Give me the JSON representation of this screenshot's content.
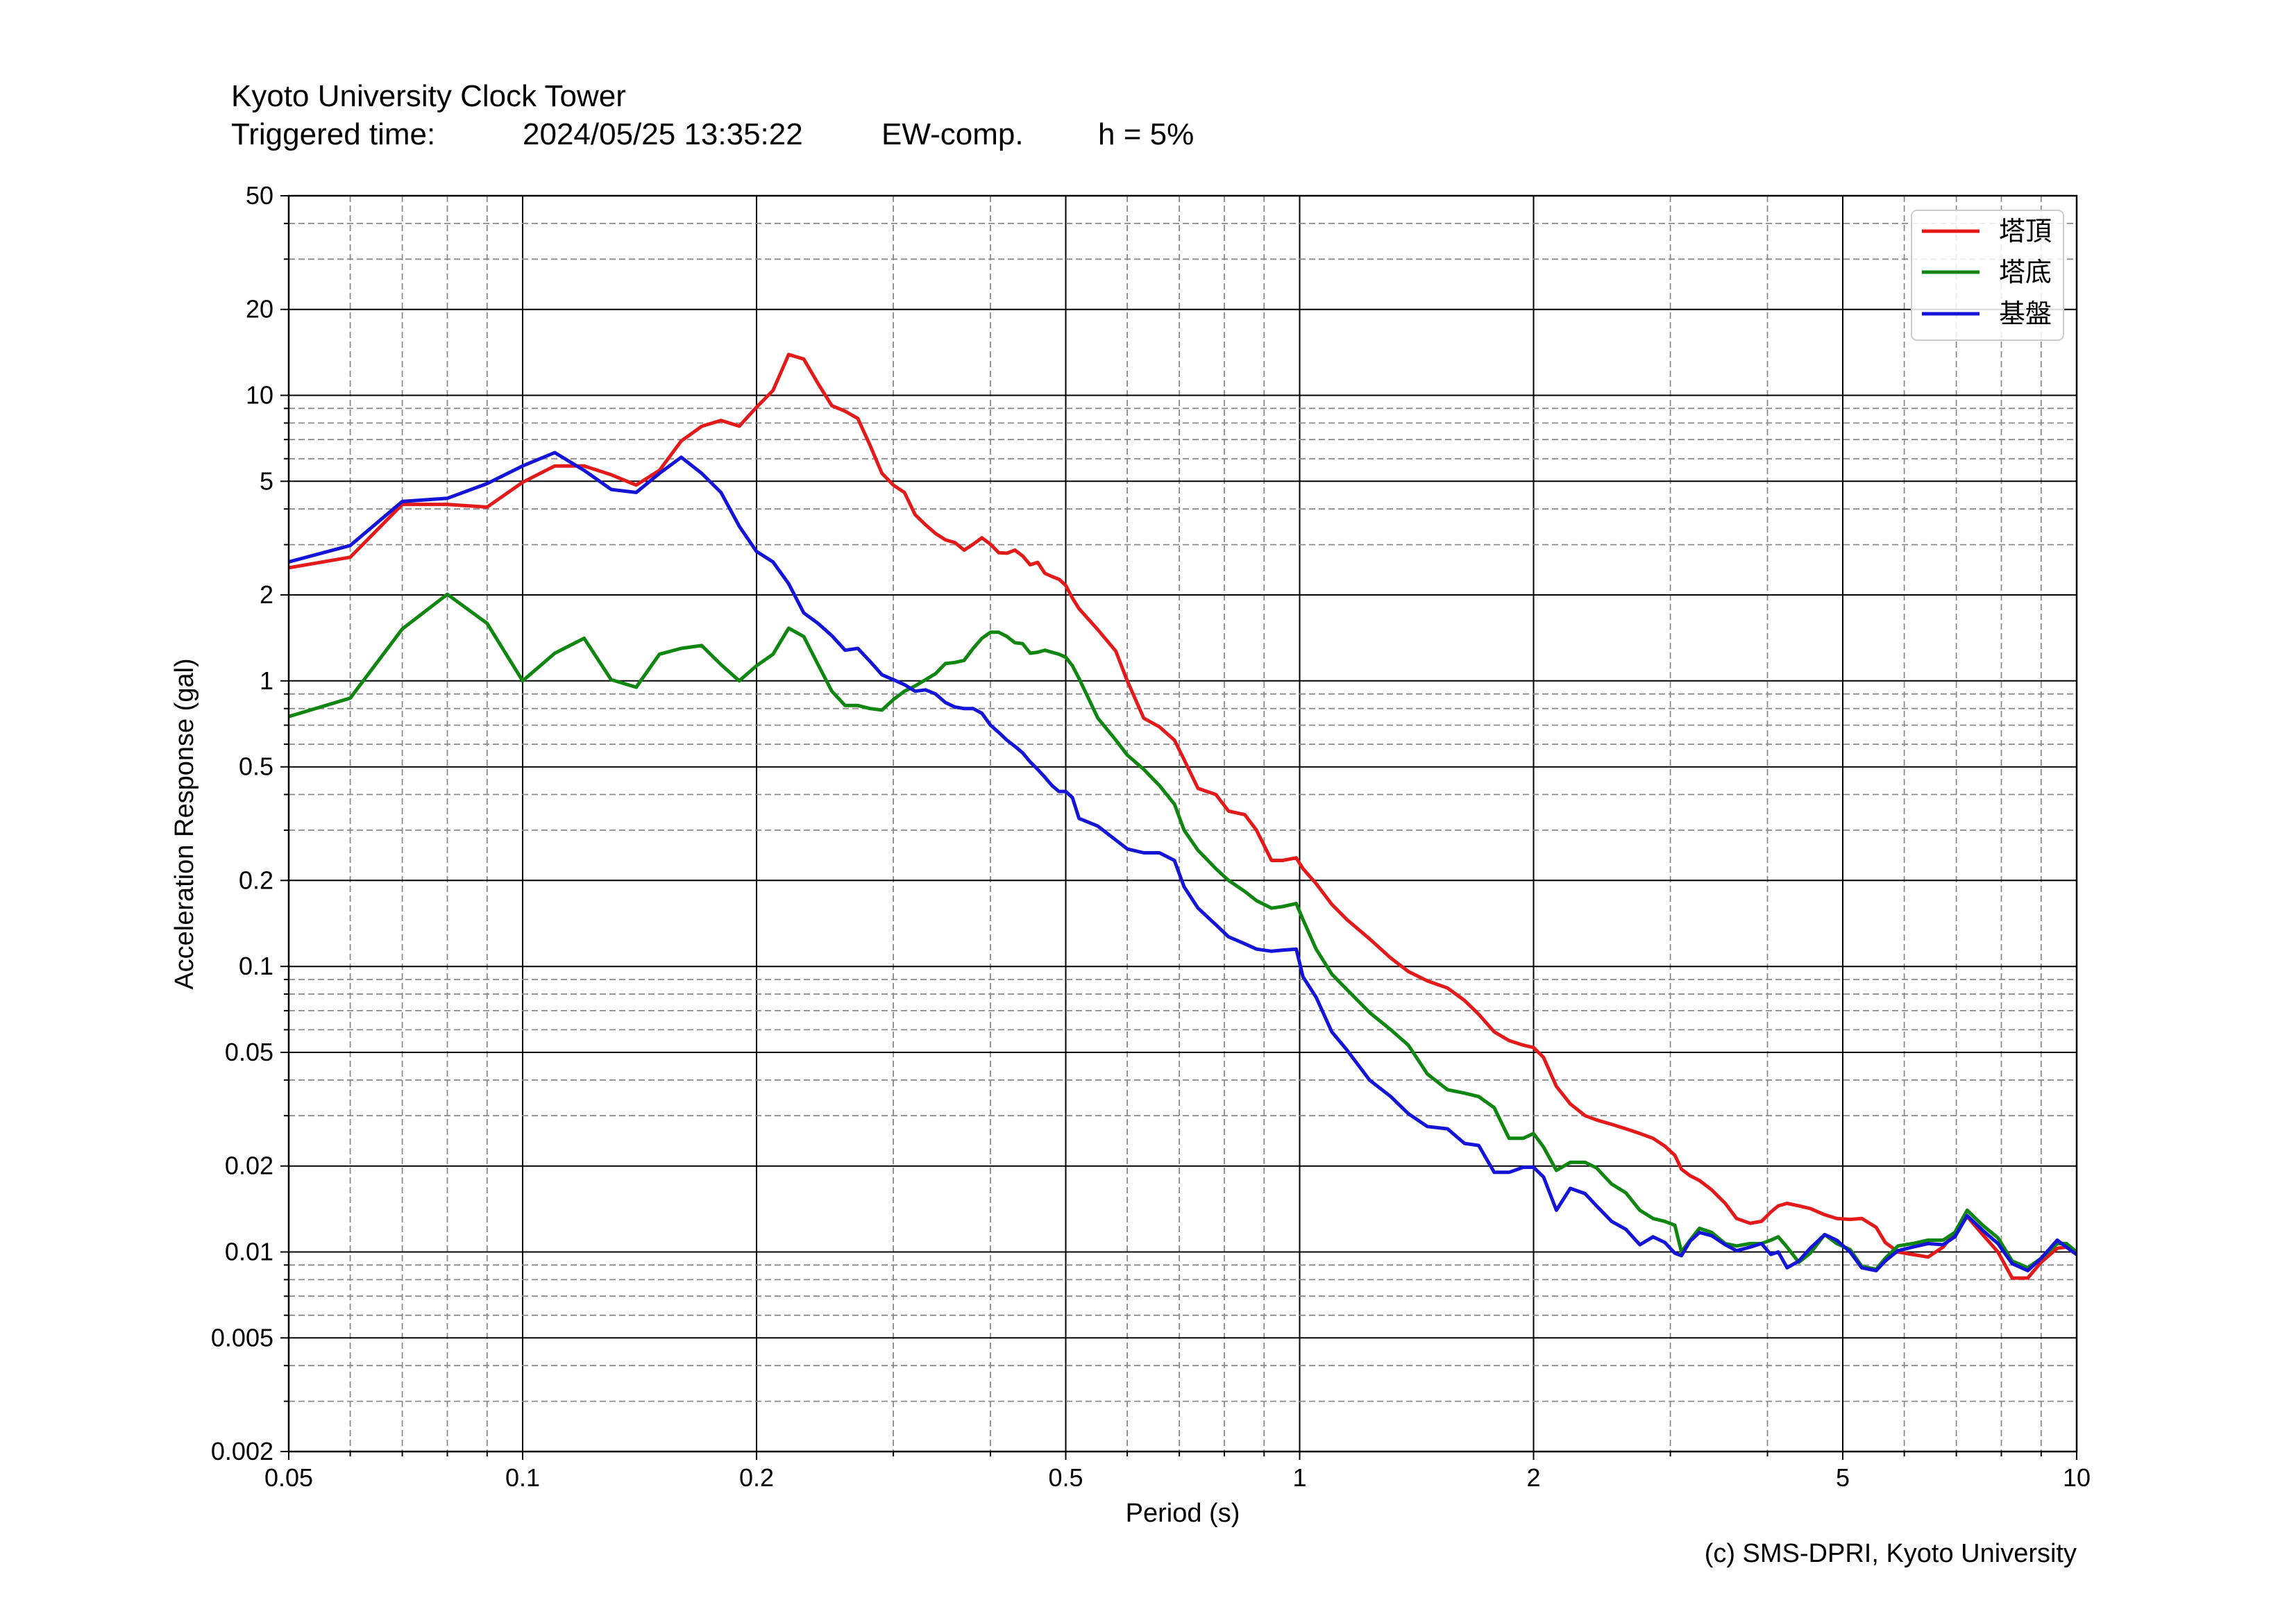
{
  "chart_data": {
    "type": "line",
    "title": "Kyoto University Clock Tower",
    "subtitle": {
      "label": "Triggered time:",
      "time": "2024/05/25 13:35:22",
      "component": "EW-comp.",
      "damping": "h = 5%"
    },
    "xlabel": "Period (s)",
    "ylabel": "Acceleration Response (gal)",
    "xscale": "log",
    "yscale": "log",
    "xlim": [
      0.05,
      10
    ],
    "ylim": [
      0.002,
      50
    ],
    "xticks": [
      "0.05",
      "0.1",
      "0.2",
      "0.5",
      "1",
      "2",
      "5",
      "10"
    ],
    "yticks": [
      "50",
      "20",
      "10",
      "5",
      "2",
      "1",
      "0.5",
      "0.2",
      "0.1",
      "0.05",
      "0.02",
      "0.01",
      "0.005",
      "0.002"
    ],
    "grid": true,
    "legend": "top-right",
    "x": [
      0.05,
      0.06,
      0.07,
      0.08,
      0.09,
      0.1,
      0.11,
      0.12,
      0.13,
      0.14,
      0.15,
      0.16,
      0.17,
      0.18,
      0.19,
      0.2,
      0.21,
      0.22,
      0.23,
      0.24,
      0.25,
      0.26,
      0.27,
      0.28,
      0.29,
      0.3,
      0.31,
      0.32,
      0.33,
      0.34,
      0.35,
      0.36,
      0.37,
      0.38,
      0.39,
      0.4,
      0.41,
      0.42,
      0.43,
      0.44,
      0.45,
      0.46,
      0.47,
      0.48,
      0.49,
      0.5,
      0.51,
      0.52,
      0.55,
      0.58,
      0.6,
      0.63,
      0.66,
      0.69,
      0.71,
      0.74,
      0.78,
      0.81,
      0.85,
      0.88,
      0.92,
      0.95,
      0.99,
      1.01,
      1.05,
      1.1,
      1.15,
      1.23,
      1.31,
      1.38,
      1.46,
      1.55,
      1.63,
      1.7,
      1.78,
      1.86,
      1.94,
      2.0,
      2.06,
      2.14,
      2.23,
      2.33,
      2.41,
      2.52,
      2.63,
      2.74,
      2.85,
      2.95,
      3.04,
      3.1,
      3.18,
      3.27,
      3.39,
      3.53,
      3.65,
      3.8,
      3.93,
      4.04,
      4.13,
      4.24,
      4.39,
      4.54,
      4.74,
      4.91,
      5.11,
      5.29,
      5.52,
      5.67,
      5.89,
      6.15,
      6.44,
      6.73,
      6.97,
      7.23,
      7.57,
      7.92,
      8.26,
      8.65,
      9.0,
      9.44,
      9.7,
      10.0
    ],
    "series": [
      {
        "name": "塔頂",
        "color": "#e41a1a",
        "values": [
          2.49,
          2.71,
          4.15,
          4.15,
          4.06,
          4.96,
          5.66,
          5.66,
          5.27,
          4.85,
          5.46,
          6.92,
          7.79,
          8.17,
          7.8,
          9.09,
          10.4,
          13.9,
          13.4,
          11.0,
          9.2,
          8.8,
          8.3,
          6.68,
          5.33,
          4.85,
          4.57,
          3.82,
          3.52,
          3.28,
          3.12,
          3.05,
          2.87,
          3.01,
          3.17,
          3.01,
          2.81,
          2.8,
          2.87,
          2.74,
          2.55,
          2.6,
          2.38,
          2.32,
          2.27,
          2.16,
          1.95,
          1.79,
          1.51,
          1.27,
          1.0,
          0.74,
          0.69,
          0.62,
          0.53,
          0.42,
          0.4,
          0.35,
          0.34,
          0.3,
          0.235,
          0.235,
          0.24,
          0.22,
          0.195,
          0.165,
          0.146,
          0.125,
          0.107,
          0.096,
          0.089,
          0.084,
          0.076,
          0.068,
          0.059,
          0.055,
          0.053,
          0.052,
          0.048,
          0.038,
          0.033,
          0.03,
          0.029,
          0.028,
          0.027,
          0.026,
          0.025,
          0.0235,
          0.0218,
          0.0195,
          0.0185,
          0.0178,
          0.0165,
          0.0148,
          0.0131,
          0.0126,
          0.0128,
          0.0138,
          0.0145,
          0.0148,
          0.0145,
          0.0142,
          0.0135,
          0.0131,
          0.013,
          0.0131,
          0.0122,
          0.0108,
          0.01,
          0.0098,
          0.0096,
          0.0104,
          0.0117,
          0.0133,
          0.0115,
          0.01,
          0.0081,
          0.0081,
          0.0092,
          0.0103,
          0.0104,
          0.0098
        ]
      },
      {
        "name": "塔底",
        "color": "#0f860f",
        "values": [
          0.75,
          0.87,
          1.52,
          2.01,
          1.59,
          1.0,
          1.25,
          1.41,
          1.01,
          0.95,
          1.24,
          1.3,
          1.33,
          1.14,
          1.0,
          1.13,
          1.24,
          1.53,
          1.43,
          1.14,
          0.92,
          0.82,
          0.82,
          0.8,
          0.79,
          0.86,
          0.92,
          0.96,
          1.01,
          1.06,
          1.15,
          1.16,
          1.18,
          1.3,
          1.41,
          1.48,
          1.48,
          1.43,
          1.36,
          1.35,
          1.25,
          1.26,
          1.28,
          1.26,
          1.24,
          1.21,
          1.13,
          1.02,
          0.74,
          0.62,
          0.55,
          0.49,
          0.43,
          0.37,
          0.3,
          0.255,
          0.22,
          0.2,
          0.183,
          0.17,
          0.16,
          0.162,
          0.166,
          0.146,
          0.115,
          0.094,
          0.083,
          0.069,
          0.06,
          0.053,
          0.042,
          0.037,
          0.036,
          0.035,
          0.032,
          0.025,
          0.025,
          0.026,
          0.0233,
          0.0193,
          0.0206,
          0.0206,
          0.0197,
          0.0173,
          0.0161,
          0.014,
          0.0131,
          0.0128,
          0.0124,
          0.01,
          0.011,
          0.0121,
          0.0117,
          0.0107,
          0.0105,
          0.0107,
          0.0107,
          0.011,
          0.0113,
          0.0104,
          0.0092,
          0.0099,
          0.0115,
          0.0107,
          0.0102,
          0.0089,
          0.0087,
          0.0095,
          0.0105,
          0.0107,
          0.011,
          0.011,
          0.0117,
          0.014,
          0.0124,
          0.0112,
          0.0093,
          0.0088,
          0.0095,
          0.0107,
          0.0107,
          0.01
        ]
      },
      {
        "name": "基盤",
        "color": "#1414d8",
        "values": [
          2.61,
          2.98,
          4.25,
          4.36,
          4.91,
          5.66,
          6.3,
          5.46,
          4.68,
          4.57,
          5.33,
          6.07,
          5.33,
          4.57,
          3.48,
          2.84,
          2.61,
          2.19,
          1.73,
          1.59,
          1.44,
          1.28,
          1.3,
          1.17,
          1.05,
          1.01,
          0.97,
          0.92,
          0.93,
          0.9,
          0.84,
          0.81,
          0.8,
          0.8,
          0.77,
          0.7,
          0.66,
          0.62,
          0.59,
          0.56,
          0.52,
          0.49,
          0.46,
          0.43,
          0.41,
          0.41,
          0.39,
          0.33,
          0.31,
          0.277,
          0.258,
          0.25,
          0.25,
          0.235,
          0.19,
          0.16,
          0.14,
          0.127,
          0.12,
          0.115,
          0.113,
          0.114,
          0.115,
          0.092,
          0.078,
          0.059,
          0.051,
          0.04,
          0.035,
          0.0305,
          0.0275,
          0.027,
          0.024,
          0.0236,
          0.019,
          0.019,
          0.0198,
          0.0198,
          0.0183,
          0.014,
          0.0167,
          0.016,
          0.0145,
          0.0128,
          0.012,
          0.0106,
          0.0113,
          0.0108,
          0.0099,
          0.0097,
          0.0109,
          0.0117,
          0.0114,
          0.0106,
          0.0101,
          0.0104,
          0.0107,
          0.0098,
          0.01,
          0.0088,
          0.0093,
          0.0103,
          0.0115,
          0.011,
          0.01,
          0.0088,
          0.0086,
          0.0093,
          0.0101,
          0.0104,
          0.0107,
          0.0106,
          0.0113,
          0.0134,
          0.0119,
          0.0107,
          0.0091,
          0.0086,
          0.0095,
          0.011,
          0.0104,
          0.0098
        ]
      }
    ]
  },
  "footer": {
    "credit": "(c) SMS-DPRI, Kyoto University"
  }
}
